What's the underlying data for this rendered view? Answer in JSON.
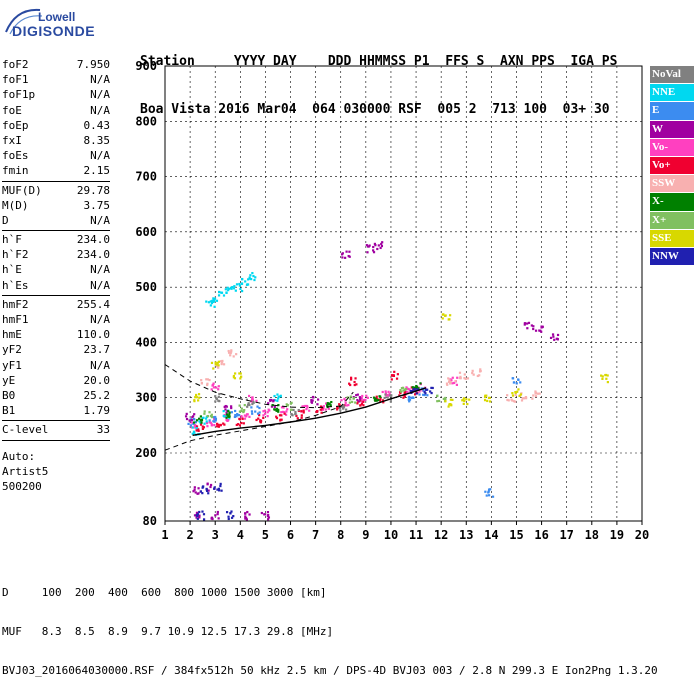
{
  "logo": {
    "line1": "Lowell",
    "line2": "DIGISONDE"
  },
  "header": {
    "line1": "Station     YYYY DAY    DDD HHMMSS P1  FFS S  AXN PPS  IGA PS",
    "line2": "Boa Vista 2016 Mar04  064 030000 RSF  005 2  713 100  03+ 30"
  },
  "params": {
    "group1": [
      {
        "k": "foF2",
        "v": "7.950"
      },
      {
        "k": "foF1",
        "v": "N/A"
      },
      {
        "k": "foF1p",
        "v": "N/A"
      },
      {
        "k": "foE",
        "v": "N/A"
      },
      {
        "k": "foEp",
        "v": "0.43"
      },
      {
        "k": "fxI",
        "v": "8.35"
      },
      {
        "k": "foEs",
        "v": "N/A"
      },
      {
        "k": "fmin",
        "v": "2.15"
      }
    ],
    "group2": [
      {
        "k": "MUF(D)",
        "v": "29.78"
      },
      {
        "k": "M(D)",
        "v": "3.75"
      },
      {
        "k": "D",
        "v": "N/A"
      }
    ],
    "group3": [
      {
        "k": "h`F",
        "v": "234.0"
      },
      {
        "k": "h`F2",
        "v": "234.0"
      },
      {
        "k": "h`E",
        "v": "N/A"
      },
      {
        "k": "h`Es",
        "v": "N/A"
      }
    ],
    "group4": [
      {
        "k": "hmF2",
        "v": "255.4"
      },
      {
        "k": "hmF1",
        "v": "N/A"
      },
      {
        "k": "hmE",
        "v": "110.0"
      },
      {
        "k": "yF2",
        "v": "23.7"
      },
      {
        "k": "yF1",
        "v": "N/A"
      },
      {
        "k": "yE",
        "v": "20.0"
      },
      {
        "k": "B0",
        "v": "25.2"
      },
      {
        "k": "B1",
        "v": "1.79"
      }
    ],
    "group5": [
      {
        "k": "C-level",
        "v": "33"
      }
    ],
    "auto": [
      "Auto:",
      "Artist5",
      "500200"
    ]
  },
  "legend": [
    {
      "label": "NoVal",
      "color": "#808080"
    },
    {
      "label": "NNE",
      "color": "#00d8f0"
    },
    {
      "label": "E",
      "color": "#3c8cf0"
    },
    {
      "label": "W",
      "color": "#a000a0"
    },
    {
      "label": "Vo-",
      "color": "#ff40c0"
    },
    {
      "label": "Vo+",
      "color": "#f00030"
    },
    {
      "label": "SSW",
      "color": "#f8b0b0"
    },
    {
      "label": "X-",
      "color": "#008000"
    },
    {
      "label": "X+",
      "color": "#80c060"
    },
    {
      "label": "SSE",
      "color": "#d8d800"
    },
    {
      "label": "NNW",
      "color": "#2020b0"
    }
  ],
  "footer": {
    "line1": "D     100  200  400  600  800 1000 1500 3000 [km]",
    "line2": "MUF   8.3  8.5  8.9  9.7 10.9 12.5 17.3 29.8 [MHz]",
    "line3": "BVJ03_2016064030000.RSF / 384fx512h 50 kHz 2.5 km / DPS-4D BVJ03 003 / 2.8 N 299.3 E Ion2Png 1.3.20"
  },
  "chart_data": {
    "type": "scatter",
    "xlim": [
      1,
      20
    ],
    "ylim": [
      80,
      900
    ],
    "x_ticks": [
      1,
      2,
      3,
      4,
      5,
      6,
      7,
      8,
      9,
      10,
      11,
      12,
      13,
      14,
      15,
      16,
      17,
      18,
      19,
      20
    ],
    "y_ticks": [
      80,
      200,
      300,
      400,
      500,
      600,
      700,
      800,
      900
    ],
    "grid": true,
    "legend_position": "right",
    "series": [
      {
        "name": "Vo-",
        "color": "#ff40c0",
        "points": [
          [
            2.2,
            250
          ],
          [
            2.8,
            255
          ],
          [
            3.5,
            262
          ],
          [
            4.2,
            268
          ],
          [
            5.0,
            272
          ],
          [
            5.8,
            276
          ],
          [
            6.6,
            280
          ],
          [
            7.4,
            285
          ],
          [
            8.2,
            292
          ],
          [
            9.0,
            298
          ],
          [
            9.8,
            305
          ],
          [
            10.6,
            312
          ],
          [
            11.2,
            318
          ],
          [
            3.0,
            320
          ],
          [
            4.5,
            300
          ],
          [
            12.5,
            330
          ]
        ]
      },
      {
        "name": "Vo+",
        "color": "#f00030",
        "points": [
          [
            2.4,
            245
          ],
          [
            3.2,
            250
          ],
          [
            4.0,
            256
          ],
          [
            4.8,
            262
          ],
          [
            5.6,
            266
          ],
          [
            6.4,
            270
          ],
          [
            7.2,
            278
          ],
          [
            8.0,
            284
          ],
          [
            8.8,
            290
          ],
          [
            9.6,
            298
          ],
          [
            10.4,
            306
          ],
          [
            11.0,
            312
          ],
          [
            8.5,
            330
          ],
          [
            10.2,
            340
          ]
        ]
      },
      {
        "name": "NNE",
        "color": "#00d8f0",
        "points": [
          [
            2.5,
            260
          ],
          [
            3.4,
            270
          ],
          [
            2.8,
            470
          ],
          [
            3.0,
            480
          ],
          [
            3.3,
            490
          ],
          [
            3.6,
            495
          ],
          [
            3.9,
            500
          ],
          [
            4.2,
            510
          ],
          [
            4.5,
            520
          ],
          [
            2.2,
            240
          ],
          [
            5.5,
            300
          ]
        ]
      },
      {
        "name": "E",
        "color": "#3c8cf0",
        "points": [
          [
            2.1,
            255
          ],
          [
            2.9,
            262
          ],
          [
            3.8,
            270
          ],
          [
            4.6,
            278
          ],
          [
            10.8,
            300
          ],
          [
            11.3,
            310
          ],
          [
            15.0,
            330
          ],
          [
            13.9,
            130
          ]
        ]
      },
      {
        "name": "W",
        "color": "#a000a0",
        "points": [
          [
            2.0,
            265
          ],
          [
            3.5,
            280
          ],
          [
            5.2,
            290
          ],
          [
            7.0,
            295
          ],
          [
            8.6,
            300
          ],
          [
            9.2,
            570
          ],
          [
            9.5,
            575
          ],
          [
            8.2,
            560
          ],
          [
            15.5,
            430
          ],
          [
            15.9,
            425
          ],
          [
            16.5,
            410
          ],
          [
            2.3,
            135
          ],
          [
            2.8,
            140
          ],
          [
            2.2,
            90
          ],
          [
            3.0,
            90
          ],
          [
            4.2,
            90
          ],
          [
            5.0,
            90
          ]
        ]
      },
      {
        "name": "SSW",
        "color": "#f8b0b0",
        "points": [
          [
            2.6,
            330
          ],
          [
            3.2,
            360
          ],
          [
            3.7,
            380
          ],
          [
            12.4,
            330
          ],
          [
            12.9,
            340
          ],
          [
            13.4,
            345
          ],
          [
            14.8,
            300
          ],
          [
            15.3,
            302
          ],
          [
            15.8,
            305
          ]
        ]
      },
      {
        "name": "X-",
        "color": "#008000",
        "points": [
          [
            2.3,
            262
          ],
          [
            3.6,
            270
          ],
          [
            5.4,
            280
          ],
          [
            7.6,
            288
          ],
          [
            9.4,
            300
          ],
          [
            11.0,
            320
          ]
        ]
      },
      {
        "name": "X+",
        "color": "#80c060",
        "points": [
          [
            2.7,
            270
          ],
          [
            4.1,
            280
          ],
          [
            6.0,
            285
          ],
          [
            8.4,
            298
          ],
          [
            10.5,
            318
          ],
          [
            12.0,
            300
          ]
        ]
      },
      {
        "name": "SSE",
        "color": "#d8d800",
        "points": [
          [
            2.2,
            300
          ],
          [
            3.0,
            360
          ],
          [
            3.9,
            340
          ],
          [
            12.3,
            290
          ],
          [
            13.0,
            295
          ],
          [
            13.8,
            300
          ],
          [
            15.0,
            310
          ],
          [
            18.5,
            335
          ],
          [
            12.2,
            445
          ]
        ]
      },
      {
        "name": "NNW",
        "color": "#2020b0",
        "points": [
          [
            2.4,
            90
          ],
          [
            3.6,
            90
          ],
          [
            2.6,
            135
          ],
          [
            3.1,
            140
          ],
          [
            10.9,
            310
          ],
          [
            11.5,
            315
          ]
        ]
      },
      {
        "name": "NoVal",
        "color": "#808080",
        "points": [
          [
            3.1,
            300
          ],
          [
            4.4,
            290
          ],
          [
            6.2,
            275
          ],
          [
            8.1,
            280
          ],
          [
            9.9,
            300
          ]
        ]
      }
    ],
    "profile_solid": [
      [
        2.1,
        232
      ],
      [
        3,
        239
      ],
      [
        4,
        245
      ],
      [
        5,
        250
      ],
      [
        6,
        256
      ],
      [
        7,
        263
      ],
      [
        8,
        272
      ],
      [
        9,
        283
      ],
      [
        10,
        298
      ],
      [
        11,
        312
      ],
      [
        11.4,
        318
      ]
    ],
    "profile_dashed": [
      [
        1,
        205
      ],
      [
        2,
        222
      ],
      [
        3,
        232
      ],
      [
        4,
        240
      ],
      [
        5,
        248
      ],
      [
        6,
        256
      ],
      [
        7,
        268
      ],
      [
        8,
        284
      ],
      [
        8.5,
        310
      ]
    ],
    "profile_dashed2": [
      [
        1,
        360
      ],
      [
        2,
        330
      ],
      [
        3,
        310
      ],
      [
        4,
        298
      ],
      [
        5,
        288
      ],
      [
        6,
        283
      ],
      [
        7,
        282
      ],
      [
        8,
        285
      ]
    ]
  }
}
